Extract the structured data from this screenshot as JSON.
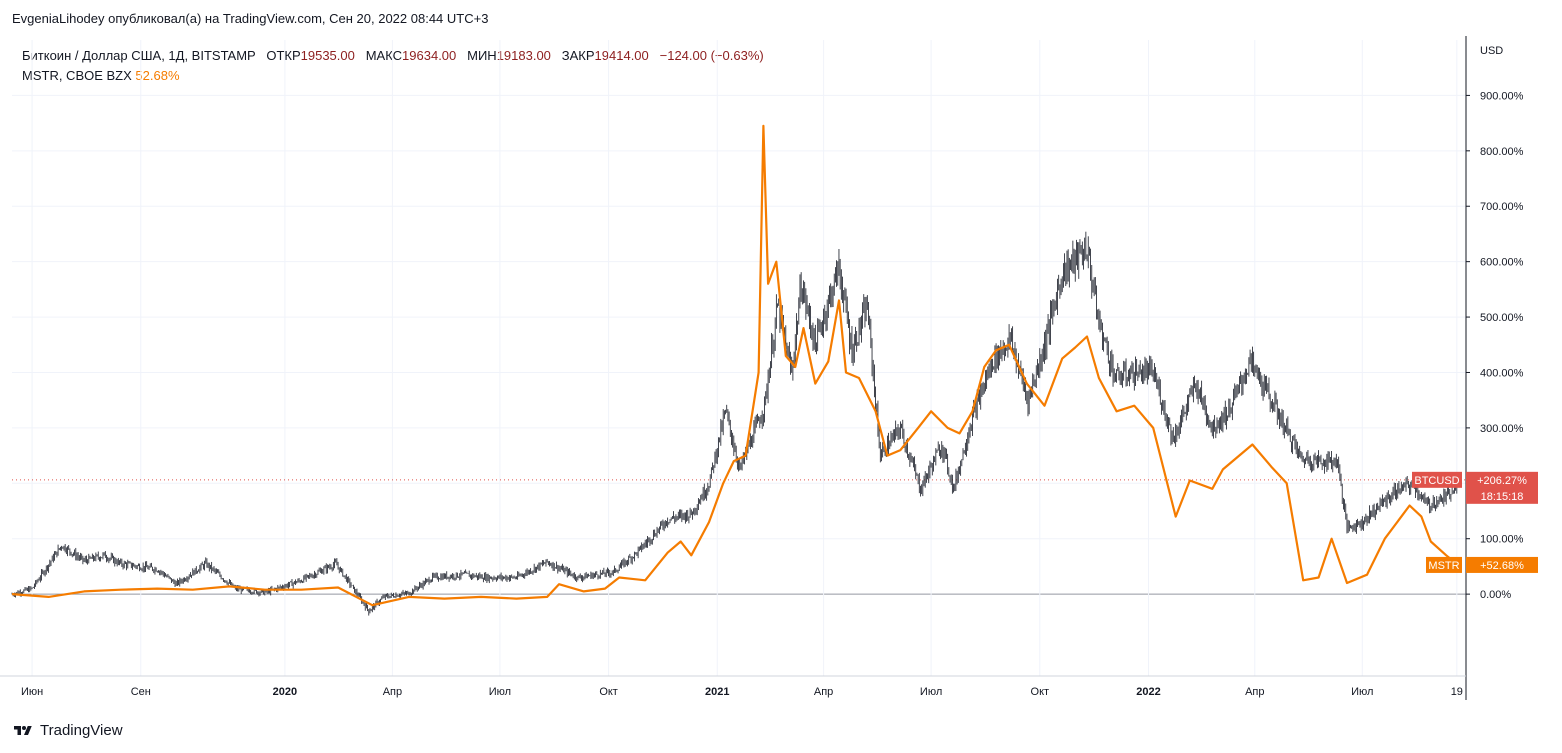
{
  "publisher": "EvgeniaLihodey опубликовал(а) на TradingView.com, Сен 20, 2022 08:44 UTC+3",
  "legend": {
    "main_symbol": "Биткоин / Доллар США, 1Д, BITSTAMP",
    "open_label": "ОТКР",
    "open": "19535.00",
    "high_label": "МАКС",
    "high": "19634.00",
    "low_label": "МИН",
    "low": "19183.00",
    "close_label": "ЗАКР",
    "close": "19414.00",
    "change": "−124.00 (−0.63%)",
    "compare_symbol": "MSTR, CBOE BZX",
    "compare_value": "52.68%"
  },
  "footer": {
    "brand": "TradingView"
  },
  "colors": {
    "btc": "#131722",
    "mstr": "#f57c00",
    "btc_badge": "#e0524a",
    "mstr_badge": "#f57c00",
    "grid": "#f0f3fa",
    "axis_text": "#131722"
  },
  "chart_data": {
    "type": "line",
    "y_axis": {
      "unit": "USD",
      "scale": "percent",
      "ylim": [
        -90,
        1000
      ],
      "ticks": [
        0,
        100,
        200,
        300,
        400,
        500,
        600,
        700,
        800,
        900
      ],
      "tick_labels": [
        "0.00%",
        "100.00%",
        "",
        "300.00%",
        "400.00%",
        "500.00%",
        "600.00%",
        "700.00%",
        "800.00%",
        "900.00%"
      ]
    },
    "x_axis": {
      "range": [
        "2019-05-15",
        "2022-09-20"
      ],
      "ticks": [
        {
          "date": "2019-06-01",
          "label": "Июн",
          "bold": false
        },
        {
          "date": "2019-09-01",
          "label": "Сен",
          "bold": false
        },
        {
          "date": "2020-01-01",
          "label": "2020",
          "bold": true
        },
        {
          "date": "2020-04-01",
          "label": "Апр",
          "bold": false
        },
        {
          "date": "2020-07-01",
          "label": "Июл",
          "bold": false
        },
        {
          "date": "2020-10-01",
          "label": "Окт",
          "bold": false
        },
        {
          "date": "2021-01-01",
          "label": "2021",
          "bold": true
        },
        {
          "date": "2021-04-01",
          "label": "Апр",
          "bold": false
        },
        {
          "date": "2021-07-01",
          "label": "Июл",
          "bold": false
        },
        {
          "date": "2021-10-01",
          "label": "Окт",
          "bold": false
        },
        {
          "date": "2022-01-01",
          "label": "2022",
          "bold": true
        },
        {
          "date": "2022-04-01",
          "label": "Апр",
          "bold": false
        },
        {
          "date": "2022-07-01",
          "label": "Июл",
          "bold": false
        },
        {
          "date": "2022-09-19",
          "label": "19",
          "bold": false
        }
      ]
    },
    "grid": true,
    "series": [
      {
        "name": "BTCUSD",
        "style": "candles",
        "color": "#131722",
        "points": [
          [
            "2019-05-15",
            0
          ],
          [
            "2019-06-01",
            10
          ],
          [
            "2019-06-26",
            88
          ],
          [
            "2019-07-15",
            60
          ],
          [
            "2019-08-01",
            70
          ],
          [
            "2019-08-15",
            55
          ],
          [
            "2019-09-15",
            45
          ],
          [
            "2019-10-01",
            18
          ],
          [
            "2019-10-26",
            55
          ],
          [
            "2019-11-20",
            10
          ],
          [
            "2019-12-15",
            3
          ],
          [
            "2020-01-15",
            25
          ],
          [
            "2020-02-13",
            55
          ],
          [
            "2020-03-12",
            -30
          ],
          [
            "2020-03-25",
            -5
          ],
          [
            "2020-04-15",
            2
          ],
          [
            "2020-05-05",
            30
          ],
          [
            "2020-06-01",
            35
          ],
          [
            "2020-06-20",
            30
          ],
          [
            "2020-07-15",
            30
          ],
          [
            "2020-08-10",
            58
          ],
          [
            "2020-09-05",
            30
          ],
          [
            "2020-10-05",
            40
          ],
          [
            "2020-10-25",
            75
          ],
          [
            "2020-11-20",
            135
          ],
          [
            "2020-12-10",
            145
          ],
          [
            "2020-12-25",
            200
          ],
          [
            "2021-01-08",
            330
          ],
          [
            "2021-01-20",
            225
          ],
          [
            "2021-02-10",
            340
          ],
          [
            "2021-02-21",
            520
          ],
          [
            "2021-03-05",
            400
          ],
          [
            "2021-03-13",
            560
          ],
          [
            "2021-03-25",
            450
          ],
          [
            "2021-04-14",
            590
          ],
          [
            "2021-04-25",
            440
          ],
          [
            "2021-05-08",
            520
          ],
          [
            "2021-05-19",
            250
          ],
          [
            "2021-06-05",
            300
          ],
          [
            "2021-06-22",
            190
          ],
          [
            "2021-07-10",
            270
          ],
          [
            "2021-07-20",
            190
          ],
          [
            "2021-08-05",
            320
          ],
          [
            "2021-08-22",
            420
          ],
          [
            "2021-09-06",
            460
          ],
          [
            "2021-09-21",
            350
          ],
          [
            "2021-10-05",
            450
          ],
          [
            "2021-10-20",
            580
          ],
          [
            "2021-11-10",
            625
          ],
          [
            "2021-11-20",
            490
          ],
          [
            "2021-12-04",
            390
          ],
          [
            "2021-12-20",
            400
          ],
          [
            "2022-01-05",
            400
          ],
          [
            "2022-01-22",
            280
          ],
          [
            "2022-02-10",
            380
          ],
          [
            "2022-02-24",
            300
          ],
          [
            "2022-03-10",
            330
          ],
          [
            "2022-03-28",
            420
          ],
          [
            "2022-04-15",
            350
          ],
          [
            "2022-05-10",
            245
          ],
          [
            "2022-05-25",
            240
          ],
          [
            "2022-06-10",
            240
          ],
          [
            "2022-06-18",
            120
          ],
          [
            "2022-07-01",
            130
          ],
          [
            "2022-07-15",
            160
          ],
          [
            "2022-08-01",
            190
          ],
          [
            "2022-08-13",
            198
          ],
          [
            "2022-08-25",
            160
          ],
          [
            "2022-09-10",
            175
          ],
          [
            "2022-09-20",
            206.27
          ]
        ]
      },
      {
        "name": "MSTR",
        "style": "line",
        "color": "#f57c00",
        "points": [
          [
            "2019-05-15",
            0
          ],
          [
            "2019-06-15",
            -5
          ],
          [
            "2019-07-15",
            5
          ],
          [
            "2019-08-15",
            8
          ],
          [
            "2019-09-15",
            10
          ],
          [
            "2019-10-15",
            8
          ],
          [
            "2019-11-15",
            14
          ],
          [
            "2019-12-15",
            8
          ],
          [
            "2020-01-15",
            8
          ],
          [
            "2020-02-15",
            12
          ],
          [
            "2020-03-15",
            -20
          ],
          [
            "2020-04-15",
            -5
          ],
          [
            "2020-05-15",
            -8
          ],
          [
            "2020-06-15",
            -5
          ],
          [
            "2020-07-15",
            -8
          ],
          [
            "2020-08-10",
            -5
          ],
          [
            "2020-08-20",
            18
          ],
          [
            "2020-09-10",
            5
          ],
          [
            "2020-09-28",
            10
          ],
          [
            "2020-10-10",
            30
          ],
          [
            "2020-11-01",
            25
          ],
          [
            "2020-11-20",
            75
          ],
          [
            "2020-12-01",
            95
          ],
          [
            "2020-12-10",
            70
          ],
          [
            "2020-12-25",
            130
          ],
          [
            "2021-01-06",
            200
          ],
          [
            "2021-01-15",
            240
          ],
          [
            "2021-01-25",
            250
          ],
          [
            "2021-02-05",
            400
          ],
          [
            "2021-02-09",
            845
          ],
          [
            "2021-02-13",
            560
          ],
          [
            "2021-02-20",
            600
          ],
          [
            "2021-02-28",
            430
          ],
          [
            "2021-03-08",
            410
          ],
          [
            "2021-03-15",
            480
          ],
          [
            "2021-03-25",
            380
          ],
          [
            "2021-04-05",
            420
          ],
          [
            "2021-04-14",
            530
          ],
          [
            "2021-04-20",
            400
          ],
          [
            "2021-05-01",
            390
          ],
          [
            "2021-05-15",
            330
          ],
          [
            "2021-05-25",
            250
          ],
          [
            "2021-06-05",
            260
          ],
          [
            "2021-06-20",
            300
          ],
          [
            "2021-07-01",
            330
          ],
          [
            "2021-07-15",
            300
          ],
          [
            "2021-07-25",
            290
          ],
          [
            "2021-08-05",
            330
          ],
          [
            "2021-08-15",
            410
          ],
          [
            "2021-08-25",
            440
          ],
          [
            "2021-09-05",
            450
          ],
          [
            "2021-09-20",
            380
          ],
          [
            "2021-10-05",
            340
          ],
          [
            "2021-10-20",
            425
          ],
          [
            "2021-10-31",
            445
          ],
          [
            "2021-11-10",
            465
          ],
          [
            "2021-11-20",
            390
          ],
          [
            "2021-12-05",
            330
          ],
          [
            "2021-12-20",
            340
          ],
          [
            "2022-01-05",
            300
          ],
          [
            "2022-01-24",
            140
          ],
          [
            "2022-02-05",
            205
          ],
          [
            "2022-02-24",
            190
          ],
          [
            "2022-03-05",
            225
          ],
          [
            "2022-03-30",
            270
          ],
          [
            "2022-04-15",
            230
          ],
          [
            "2022-04-28",
            200
          ],
          [
            "2022-05-12",
            25
          ],
          [
            "2022-05-25",
            30
          ],
          [
            "2022-06-05",
            100
          ],
          [
            "2022-06-18",
            20
          ],
          [
            "2022-07-05",
            35
          ],
          [
            "2022-07-20",
            100
          ],
          [
            "2022-08-10",
            160
          ],
          [
            "2022-08-20",
            140
          ],
          [
            "2022-08-28",
            95
          ],
          [
            "2022-09-10",
            70
          ],
          [
            "2022-09-20",
            52.68
          ]
        ]
      }
    ],
    "labels": [
      {
        "series": "BTCUSD",
        "symbol": "BTCUSD",
        "value": "+206.27%",
        "countdown": "18:15:18"
      },
      {
        "series": "MSTR",
        "symbol": "MSTR",
        "value": "+52.68%"
      }
    ]
  }
}
